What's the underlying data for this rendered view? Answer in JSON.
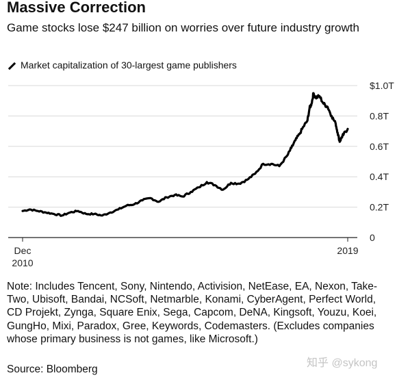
{
  "title": "Massive Correction",
  "subtitle": "Game stocks lose $247 billion on worries over future industry growth",
  "legend_label": "Market capitalization of 30-largest game publishers",
  "note": "Note: Includes Tencent, Sony, Nintendo, Activision, NetEase, EA, Nexon, Take-Two, Ubisoft, Bandai, NCSoft, Netmarble, Konami, CyberAgent, Perfect World, CD Projekt, Zynga, Square Enix, Sega, Capcom, DeNA, Kingsoft, Youzu, Koei, GungHo, Mixi, Paradox, Gree, Keywords, Codemasters. (Excludes companies whose primary business is not games, like Microsoft.)",
  "source": "Source: Bloomberg",
  "watermark": "知乎 @sykong",
  "chart_data": {
    "type": "line",
    "ylim": [
      0,
      1.0
    ],
    "y_unit": "trillion USD",
    "y_ticks": [
      {
        "value": 1.0,
        "label": "$1.0T"
      },
      {
        "value": 0.8,
        "label": "0.8T"
      },
      {
        "value": 0.6,
        "label": "0.6T"
      },
      {
        "value": 0.4,
        "label": "0.4T"
      },
      {
        "value": 0.2,
        "label": "0.2T"
      },
      {
        "value": 0,
        "label": "0"
      }
    ],
    "x_ticks": [
      {
        "value": 2010.92,
        "line1": "Dec",
        "line2": "2010"
      },
      {
        "value": 2019.0,
        "line1": "2019",
        "line2": ""
      }
    ],
    "grid": true,
    "series": [
      {
        "color": "#000000",
        "x": [
          2010.92,
          2011.1,
          2011.3,
          2011.5,
          2011.7,
          2011.9,
          2012.1,
          2012.3,
          2012.5,
          2012.7,
          2012.9,
          2013.1,
          2013.3,
          2013.5,
          2013.7,
          2013.9,
          2014.1,
          2014.3,
          2014.5,
          2014.7,
          2014.9,
          2015.1,
          2015.3,
          2015.5,
          2015.7,
          2015.9,
          2016.1,
          2016.3,
          2016.5,
          2016.7,
          2016.9,
          2017.1,
          2017.3,
          2017.5,
          2017.6,
          2017.7,
          2017.8,
          2017.9,
          2018.0,
          2018.05,
          2018.1,
          2018.15,
          2018.2,
          2018.3,
          2018.4,
          2018.5,
          2018.6,
          2018.7,
          2018.75,
          2018.8,
          2018.85,
          2018.9,
          2019.0
        ],
        "y": [
          0.175,
          0.185,
          0.175,
          0.165,
          0.155,
          0.145,
          0.165,
          0.175,
          0.155,
          0.155,
          0.145,
          0.165,
          0.185,
          0.21,
          0.22,
          0.245,
          0.26,
          0.235,
          0.265,
          0.28,
          0.27,
          0.3,
          0.33,
          0.365,
          0.345,
          0.315,
          0.36,
          0.355,
          0.38,
          0.42,
          0.485,
          0.485,
          0.47,
          0.54,
          0.59,
          0.64,
          0.68,
          0.73,
          0.77,
          0.85,
          0.88,
          0.95,
          0.92,
          0.93,
          0.88,
          0.86,
          0.8,
          0.75,
          0.69,
          0.63,
          0.66,
          0.68,
          0.715
        ]
      }
    ]
  }
}
